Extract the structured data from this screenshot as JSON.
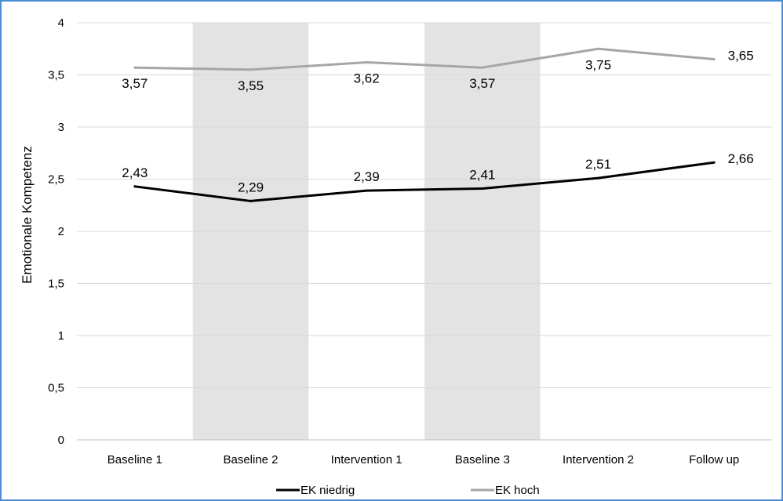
{
  "chart_data": {
    "type": "line",
    "categories": [
      "Baseline 1",
      "Baseline 2",
      "Intervention 1",
      "Baseline 3",
      "Intervention 2",
      "Follow up"
    ],
    "series": [
      {
        "name": "EK niedrig",
        "color": "#000000",
        "values": [
          2.43,
          2.29,
          2.39,
          2.41,
          2.51,
          2.66
        ],
        "labels": [
          "2,43",
          "2,29",
          "2,39",
          "2,41",
          "2,51",
          "2,66"
        ]
      },
      {
        "name": "EK hoch",
        "color": "#a6a6a6",
        "values": [
          3.57,
          3.55,
          3.62,
          3.57,
          3.75,
          3.65
        ],
        "labels": [
          "3,57",
          "3,55",
          "3,62",
          "3,57",
          "3,75",
          "3,65"
        ]
      }
    ],
    "xlabel": "",
    "ylabel": "Emotionale Kompetenz",
    "ylim": [
      0,
      4
    ],
    "yticks": [
      0,
      0.5,
      1,
      1.5,
      2,
      2.5,
      3,
      3.5,
      4
    ],
    "ytick_labels": [
      "0",
      "0,5",
      "1",
      "1,5",
      "2",
      "2,5",
      "3",
      "3,5",
      "4"
    ],
    "shaded_categories": [
      "Baseline 2",
      "Baseline 3"
    ],
    "shade_color": "#e3e3e3",
    "grid": true,
    "legend_position": "bottom"
  }
}
